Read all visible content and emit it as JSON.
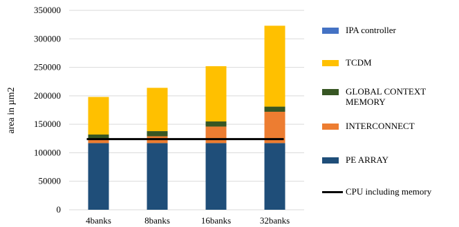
{
  "chart_data": {
    "type": "bar",
    "stacked": true,
    "categories": [
      "4banks",
      "8banks",
      "16banks",
      "32banks"
    ],
    "ylabel": "area in µm2",
    "ylim": [
      0,
      350000
    ],
    "yticks": [
      0,
      50000,
      100000,
      150000,
      200000,
      250000,
      300000,
      350000
    ],
    "grid": true,
    "legend_position": "right",
    "series": [
      {
        "name": "PE ARRAY",
        "color": "#1f4e79",
        "values": [
          117000,
          117000,
          117000,
          117000
        ]
      },
      {
        "name": "INTERCONNECT",
        "color": "#ed7d31",
        "values": [
          6000,
          12000,
          29000,
          55000
        ]
      },
      {
        "name": "GLOBAL CONTEXT MEMORY",
        "color": "#375623",
        "values": [
          9000,
          9000,
          9000,
          9000
        ]
      },
      {
        "name": "TCDM",
        "color": "#ffc000",
        "values": [
          66000,
          76000,
          97000,
          142000
        ]
      },
      {
        "name": "IPA controller",
        "color": "#4472c4",
        "values": [
          0,
          0,
          0,
          0
        ]
      }
    ],
    "line": {
      "name": "CPU including memory",
      "color": "#000000",
      "value": 124000
    }
  },
  "legend_order": [
    {
      "label": "IPA controller",
      "color": "#4472c4",
      "kind": "box"
    },
    {
      "label": "TCDM",
      "color": "#ffc000",
      "kind": "box"
    },
    {
      "label": "GLOBAL CONTEXT MEMORY",
      "color": "#375623",
      "kind": "box"
    },
    {
      "label": "INTERCONNECT",
      "color": "#ed7d31",
      "kind": "box"
    },
    {
      "label": "PE ARRAY",
      "color": "#1f4e79",
      "kind": "box"
    },
    {
      "label": "CPU including memory",
      "color": "#000000",
      "kind": "line"
    }
  ]
}
